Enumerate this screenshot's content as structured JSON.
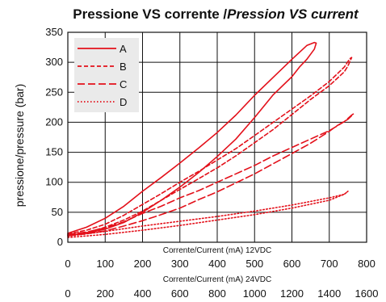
{
  "chart_data": {
    "type": "line",
    "title": "Pressione VS corrente /",
    "title_italic": "Pression VS current",
    "ylabel": "pressione/pressure (bar)",
    "x_axes": [
      {
        "label": "Corrente/Current (mA) 12VDC",
        "ticks": [
          "0",
          "100",
          "200",
          "300",
          "400",
          "500",
          "600",
          "700",
          "800"
        ],
        "range": [
          0,
          800
        ]
      },
      {
        "label": "Corrente/Current (mA) 24VDC",
        "ticks": [
          "0",
          "200",
          "400",
          "600",
          "800",
          "1000",
          "1200",
          "1400",
          "1600"
        ],
        "range": [
          0,
          1600
        ]
      }
    ],
    "ylim": [
      0,
      350
    ],
    "yticks": [
      "0",
      "50",
      "100",
      "150",
      "200",
      "250",
      "300",
      "350"
    ],
    "grid": true,
    "legend_position": "top-left",
    "colors": {
      "series": "#e3101a",
      "grid": "#111111",
      "legend_bg": "#eaeaea"
    },
    "series": [
      {
        "name": "A",
        "style": "solid",
        "x": [
          0,
          50,
          100,
          150,
          200,
          250,
          300,
          350,
          400,
          450,
          500,
          550,
          600,
          640,
          660,
          665,
          660,
          640,
          620,
          600,
          550,
          500,
          450,
          400,
          350,
          300,
          250,
          200,
          150,
          100,
          50,
          0
        ],
        "y": [
          15,
          25,
          40,
          60,
          85,
          108,
          132,
          157,
          183,
          212,
          245,
          275,
          305,
          328,
          333,
          332,
          322,
          305,
          292,
          276,
          246,
          208,
          172,
          143,
          116,
          92,
          70,
          50,
          33,
          22,
          15,
          12
        ]
      },
      {
        "name": "B",
        "style": "dashed",
        "x": [
          0,
          50,
          100,
          150,
          200,
          250,
          300,
          350,
          400,
          450,
          500,
          550,
          600,
          650,
          700,
          740,
          755,
          760,
          750,
          740,
          700,
          650,
          600,
          550,
          500,
          450,
          400,
          350,
          300,
          250,
          200,
          150,
          100,
          50,
          0
        ],
        "y": [
          14,
          20,
          30,
          45,
          63,
          81,
          100,
          118,
          137,
          156,
          178,
          200,
          222,
          244,
          268,
          292,
          306,
          308,
          294,
          284,
          261,
          238,
          213,
          188,
          166,
          144,
          124,
          106,
          88,
          70,
          52,
          37,
          25,
          16,
          12
        ]
      },
      {
        "name": "C",
        "style": "dashed-long",
        "x": [
          0,
          50,
          100,
          150,
          200,
          250,
          300,
          350,
          400,
          450,
          500,
          550,
          600,
          650,
          700,
          740,
          760,
          765,
          750,
          720,
          700,
          650,
          600,
          550,
          500,
          450,
          400,
          350,
          300,
          250,
          200,
          150,
          100,
          50,
          0
        ],
        "y": [
          13,
          17,
          24,
          34,
          48,
          60,
          74,
          86,
          100,
          114,
          128,
          144,
          158,
          172,
          186,
          201,
          212,
          214,
          205,
          194,
          185,
          165,
          148,
          131,
          114,
          99,
          84,
          71,
          57,
          46,
          36,
          27,
          19,
          14,
          11
        ]
      },
      {
        "name": "D",
        "style": "dotted",
        "x": [
          0,
          100,
          200,
          300,
          400,
          500,
          600,
          700,
          740,
          750,
          740,
          700,
          600,
          500,
          400,
          300,
          200,
          100,
          0
        ],
        "y": [
          10,
          18,
          27,
          35,
          43,
          52,
          62,
          74,
          80,
          85,
          80,
          70,
          57,
          46,
          37,
          28,
          20,
          13,
          8
        ]
      }
    ]
  }
}
